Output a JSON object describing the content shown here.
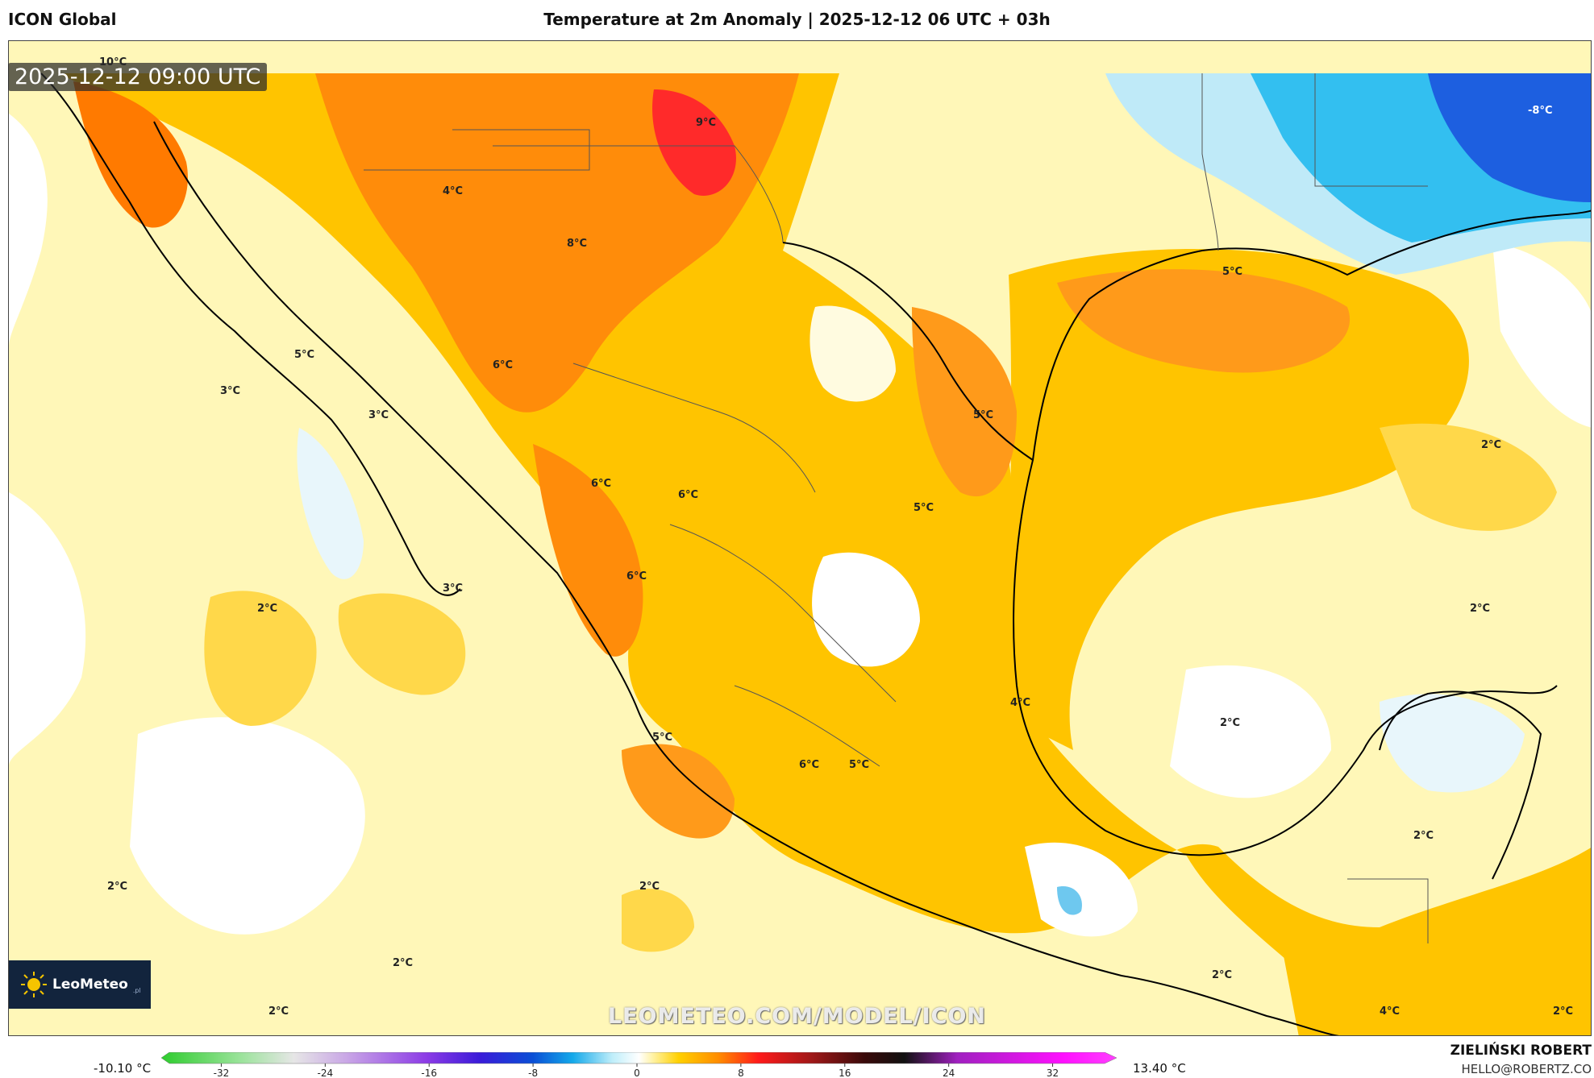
{
  "header": {
    "model_name": "ICON Global",
    "title": "Temperature at 2m Anomaly | 2025-12-12 06 UTC + 03h"
  },
  "map": {
    "valid_time": "2025-12-12 09:00 UTC",
    "watermark": "LEOMETEO.COM/MODEL/ICON",
    "logo": {
      "name": "LeoMeteo",
      "suffix": ".pl",
      "icon": "sun-icon"
    },
    "labels": [
      {
        "text": "10°C",
        "value": 10
      },
      {
        "text": "9°C",
        "value": 9
      },
      {
        "text": "-8°C",
        "value": -8
      },
      {
        "text": "4°C",
        "value": 4
      },
      {
        "text": "8°C",
        "value": 8
      },
      {
        "text": "5°C",
        "value": 5
      },
      {
        "text": "5°C",
        "value": 5
      },
      {
        "text": "3°C",
        "value": 3
      },
      {
        "text": "6°C",
        "value": 6
      },
      {
        "text": "3°C",
        "value": 3
      },
      {
        "text": "5°C",
        "value": 5
      },
      {
        "text": "2°C",
        "value": 2
      },
      {
        "text": "6°C",
        "value": 6
      },
      {
        "text": "6°C",
        "value": 6
      },
      {
        "text": "5°C",
        "value": 5
      },
      {
        "text": "6°C",
        "value": 6
      },
      {
        "text": "3°C",
        "value": 3
      },
      {
        "text": "2°C",
        "value": 2
      },
      {
        "text": "2°C",
        "value": 2
      },
      {
        "text": "4°C",
        "value": 4
      },
      {
        "text": "5°C",
        "value": 5
      },
      {
        "text": "2°C",
        "value": 2
      },
      {
        "text": "6°C",
        "value": 6
      },
      {
        "text": "5°C",
        "value": 5
      },
      {
        "text": "2°C",
        "value": 2
      },
      {
        "text": "2°C",
        "value": 2
      },
      {
        "text": "2°C",
        "value": 2
      },
      {
        "text": "2°C",
        "value": 2
      },
      {
        "text": "2°C",
        "value": 2
      },
      {
        "text": "4°C",
        "value": 4
      },
      {
        "text": "2°C",
        "value": 2
      },
      {
        "text": "2°C",
        "value": 2
      }
    ]
  },
  "legend": {
    "min_label": "-10.10 °C",
    "max_label": "13.40 °C",
    "ticks": [
      "-32",
      "-24",
      "-16",
      "-8",
      "0",
      "8",
      "16",
      "24",
      "32"
    ],
    "tick_values": [
      -32,
      -24,
      -16,
      -8,
      0,
      8,
      16,
      24,
      32
    ],
    "range": [
      -36,
      36
    ],
    "stops": [
      {
        "v": -36,
        "color": "#2ecc2e"
      },
      {
        "v": -30,
        "color": "#9be39b"
      },
      {
        "v": -26,
        "color": "#e6e6e6"
      },
      {
        "v": -22,
        "color": "#c9a6e6"
      },
      {
        "v": -16,
        "color": "#8c3be6"
      },
      {
        "v": -12,
        "color": "#3a1bd9"
      },
      {
        "v": -8,
        "color": "#0a4fd6"
      },
      {
        "v": -5,
        "color": "#14a9ea"
      },
      {
        "v": -2,
        "color": "#bfeefa"
      },
      {
        "v": 0,
        "color": "#ffffff"
      },
      {
        "v": 1,
        "color": "#fff3a8"
      },
      {
        "v": 3,
        "color": "#ffd000"
      },
      {
        "v": 6,
        "color": "#ff8c00"
      },
      {
        "v": 9,
        "color": "#ff1a1a"
      },
      {
        "v": 13,
        "color": "#a01818"
      },
      {
        "v": 17,
        "color": "#3a0a0a"
      },
      {
        "v": 20,
        "color": "#111111"
      },
      {
        "v": 24,
        "color": "#a020c0"
      },
      {
        "v": 32,
        "color": "#ff10ff"
      },
      {
        "v": 36,
        "color": "#ff40ff"
      }
    ]
  },
  "footer": {
    "author": "ZIELIŃSKI ROBERT",
    "email": "HELLO@ROBERTZ.CO"
  }
}
